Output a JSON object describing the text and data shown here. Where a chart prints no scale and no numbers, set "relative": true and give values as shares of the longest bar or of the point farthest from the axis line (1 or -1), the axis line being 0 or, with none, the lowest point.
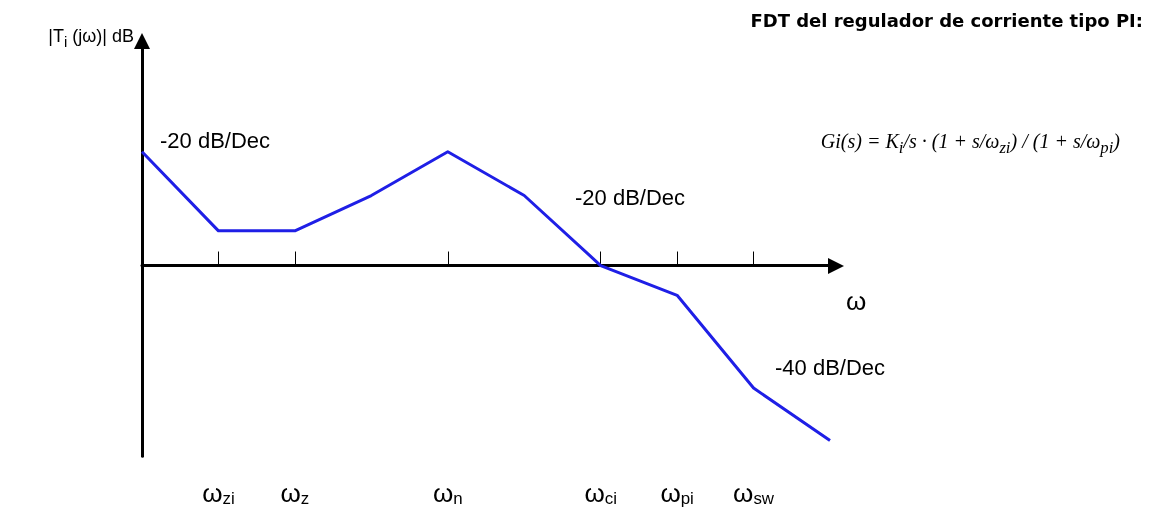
{
  "chart_data": {
    "type": "line",
    "relative": true,
    "title": "FDT del regulador de corriente tipo PI:",
    "xlabel": "ω",
    "categories": [
      null,
      "ω$_{zi}$",
      "ω$_{z}$",
      null,
      "ω$_{n}$",
      null,
      "ω$_{ci}$",
      "ω$_{pi}$",
      "ω$_{sw}$",
      null
    ],
    "series": [
      {
        "color": "#1f1fe6",
        "values": [
          0.65,
          0.198,
          0.198,
          0.4,
          0.65,
          0.4,
          0,
          -0.17,
          -0.7,
          -1
        ]
      }
    ],
    "annotations": [
      "-20 dB/Dec",
      "-20 dB/Dec",
      "-40 dB/Dec",
      "|T$_{i}$ (jω)| dB",
      "Gi(s) = K$_{i}$/s · (1 + s/ω$_{zi}$) / (1 + s/ω$_{pi}$)"
    ],
    "marker": "none",
    "line_style": "solid",
    "grid": false
  }
}
